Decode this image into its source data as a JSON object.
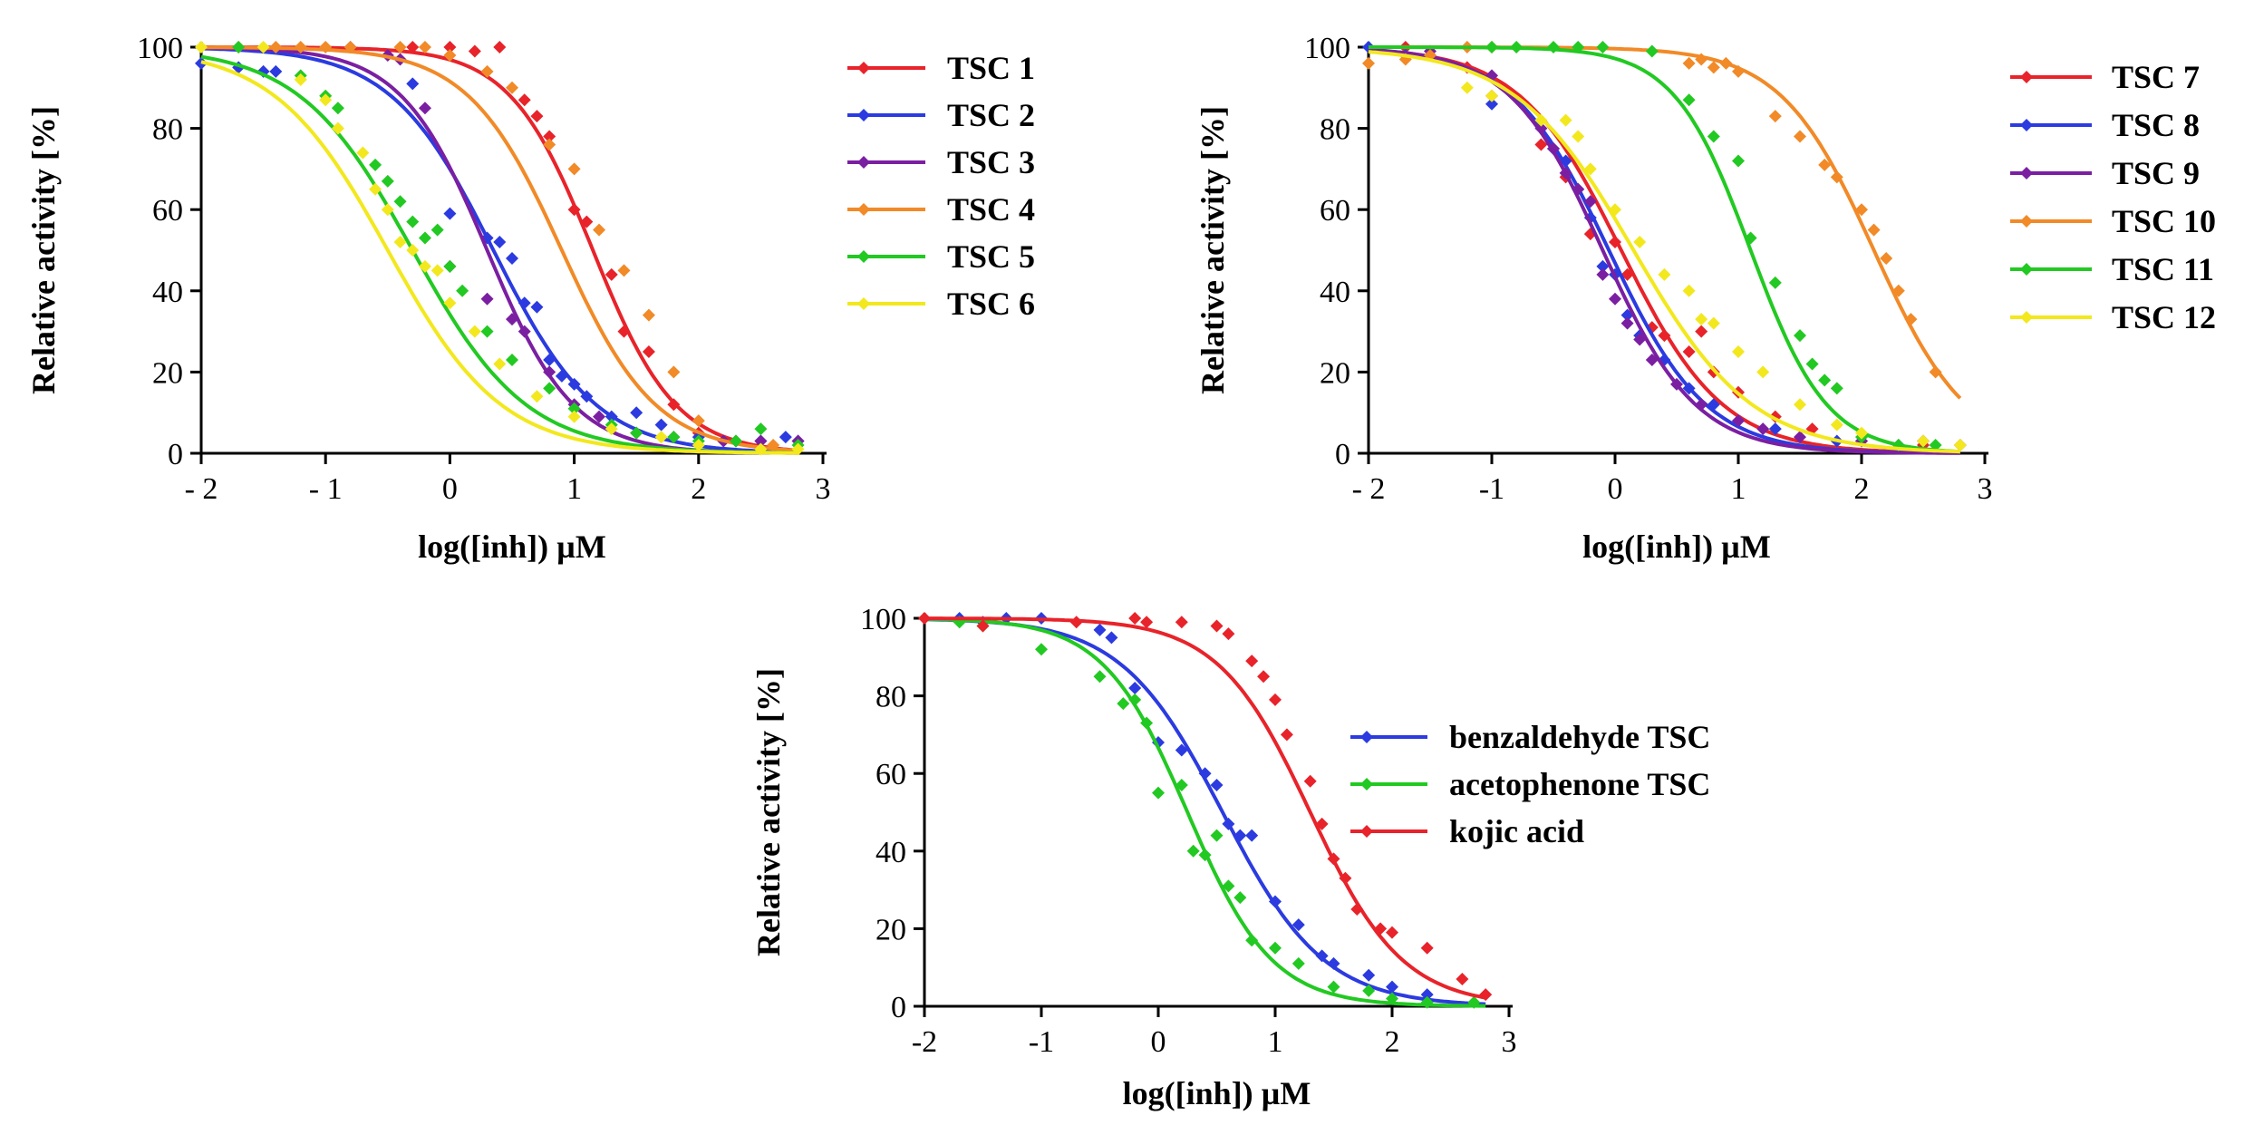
{
  "chart_data": [
    {
      "type": "scatter",
      "title": "",
      "xlabel": "log([inh]) µM",
      "ylabel": "Relative activity [%]",
      "xlim": [
        -2,
        3
      ],
      "ylim": [
        0,
        100
      ],
      "xticks": [
        -2,
        -1,
        0,
        1,
        2,
        3
      ],
      "xtick_labels": [
        "- 2",
        "- 1",
        "0",
        "1",
        "2",
        "3"
      ],
      "yticks": [
        0,
        20,
        40,
        60,
        80,
        100
      ],
      "ytick_labels": [
        "0",
        "20",
        "40",
        "60",
        "80",
        "100"
      ],
      "grid": false,
      "legend_position": "right",
      "fit_curves": true,
      "series": [
        {
          "name": "TSC 1",
          "color": "#e8232a",
          "logIC50": 1.15,
          "hill": 1.3,
          "x": [
            -0.3,
            0.0,
            0.2,
            0.4,
            0.6,
            0.7,
            0.8,
            1.0,
            1.1,
            1.3,
            1.4,
            1.6,
            1.8,
            2.0
          ],
          "y": [
            100,
            100,
            99,
            100,
            87,
            83,
            78,
            60,
            57,
            44,
            30,
            25,
            12,
            5
          ]
        },
        {
          "name": "TSC 2",
          "color": "#2b3be0",
          "logIC50": 0.35,
          "hill": 1.05,
          "x": [
            -2.0,
            -1.7,
            -1.5,
            -1.4,
            -0.3,
            0.0,
            0.3,
            0.4,
            0.5,
            0.6,
            0.7,
            0.8,
            0.9,
            1.0,
            1.1,
            1.3,
            1.5,
            1.7,
            2.0,
            2.3,
            2.5,
            2.7,
            2.8
          ],
          "y": [
            96,
            95,
            94,
            94,
            91,
            59,
            53,
            52,
            48,
            37,
            36,
            23,
            19,
            17,
            14,
            9,
            10,
            7,
            4,
            3,
            3,
            4,
            3
          ]
        },
        {
          "name": "TSC 3",
          "color": "#7b1fa2",
          "logIC50": 0.3,
          "hill": 1.25,
          "x": [
            -0.8,
            -0.5,
            -0.4,
            -0.2,
            0.0,
            0.3,
            0.5,
            0.6,
            0.8,
            1.0,
            1.2,
            1.5,
            1.8,
            2.2,
            2.5,
            2.8
          ],
          "y": [
            100,
            98,
            97,
            85,
            46,
            38,
            33,
            30,
            20,
            12,
            9,
            5,
            4,
            3,
            3,
            3
          ]
        },
        {
          "name": "TSC 4",
          "color": "#f18a27",
          "logIC50": 0.9,
          "hill": 1.15,
          "x": [
            -1.7,
            -1.4,
            -1.2,
            -1.0,
            -0.8,
            -0.4,
            -0.2,
            0.0,
            0.3,
            0.5,
            0.8,
            1.0,
            1.2,
            1.4,
            1.6,
            1.8,
            2.0,
            2.3,
            2.6
          ],
          "y": [
            100,
            100,
            100,
            100,
            100,
            100,
            100,
            98,
            94,
            90,
            76,
            70,
            55,
            45,
            34,
            20,
            8,
            3,
            2
          ]
        },
        {
          "name": "TSC 5",
          "color": "#22c922",
          "logIC50": -0.3,
          "hill": 0.95,
          "x": [
            -1.7,
            -1.2,
            -1.0,
            -0.9,
            -0.6,
            -0.5,
            -0.4,
            -0.3,
            -0.2,
            -0.1,
            0.0,
            0.1,
            0.3,
            0.5,
            0.8,
            1.0,
            1.3,
            1.5,
            1.8,
            2.0,
            2.3,
            2.5,
            2.8
          ],
          "y": [
            100,
            93,
            88,
            85,
            71,
            67,
            62,
            57,
            53,
            55,
            46,
            40,
            30,
            23,
            16,
            11,
            7,
            5,
            4,
            3,
            3,
            6,
            2
          ]
        },
        {
          "name": "TSC 6",
          "color": "#f2e81d",
          "logIC50": -0.5,
          "hill": 0.95,
          "x": [
            -2.0,
            -1.5,
            -1.2,
            -1.0,
            -0.9,
            -0.7,
            -0.6,
            -0.5,
            -0.4,
            -0.3,
            -0.2,
            -0.1,
            0.0,
            0.2,
            0.4,
            0.7,
            1.0,
            1.3,
            1.7,
            2.0,
            2.5,
            2.8
          ],
          "y": [
            100,
            100,
            92,
            87,
            80,
            74,
            65,
            60,
            52,
            50,
            46,
            45,
            37,
            30,
            22,
            14,
            9,
            6,
            4,
            2,
            1,
            1
          ]
        }
      ]
    },
    {
      "type": "scatter",
      "title": "",
      "xlabel": "log([inh]) µM",
      "ylabel": "Relative activity [%]",
      "xlim": [
        -2,
        3
      ],
      "ylim": [
        0,
        100
      ],
      "xticks": [
        -2,
        -1,
        0,
        1,
        2,
        3
      ],
      "xtick_labels": [
        "- 2",
        "-1",
        "0",
        "1",
        "2",
        "3"
      ],
      "yticks": [
        0,
        20,
        40,
        60,
        80,
        100
      ],
      "ytick_labels": [
        "0",
        "20",
        "40",
        "60",
        "80",
        "100"
      ],
      "grid": false,
      "legend_position": "right",
      "fit_curves": true,
      "series": [
        {
          "name": "TSC 7",
          "color": "#e8232a",
          "logIC50": 0.05,
          "hill": 1.05,
          "x": [
            -1.7,
            -1.2,
            -1.0,
            -0.6,
            -0.4,
            -0.2,
            0.0,
            0.1,
            0.3,
            0.4,
            0.6,
            0.7,
            0.8,
            1.0,
            1.3,
            1.6,
            2.0,
            2.5
          ],
          "y": [
            100,
            95,
            88,
            76,
            68,
            54,
            52,
            44,
            31,
            29,
            25,
            30,
            20,
            15,
            9,
            6,
            3,
            2
          ]
        },
        {
          "name": "TSC 8",
          "color": "#2b3be0",
          "logIC50": -0.05,
          "hill": 1.1,
          "x": [
            -2.0,
            -1.7,
            -1.0,
            -0.5,
            -0.4,
            -0.3,
            -0.2,
            -0.1,
            0.0,
            0.1,
            0.2,
            0.4,
            0.6,
            0.8,
            1.0,
            1.3,
            1.8,
            2.3
          ],
          "y": [
            100,
            98,
            86,
            75,
            72,
            65,
            58,
            46,
            44,
            34,
            29,
            23,
            16,
            12,
            8,
            6,
            3,
            2
          ]
        },
        {
          "name": "TSC 9",
          "color": "#7b1fa2",
          "logIC50": -0.1,
          "hill": 1.15,
          "x": [
            -1.5,
            -1.0,
            -0.6,
            -0.5,
            -0.4,
            -0.3,
            -0.2,
            -0.1,
            0.0,
            0.1,
            0.2,
            0.3,
            0.5,
            0.7,
            1.0,
            1.2,
            1.5,
            2.0,
            2.5,
            2.8
          ],
          "y": [
            99,
            93,
            80,
            75,
            69,
            65,
            62,
            44,
            38,
            32,
            28,
            23,
            17,
            12,
            8,
            6,
            4,
            3,
            3,
            2
          ]
        },
        {
          "name": "TSC 10",
          "color": "#f18a27",
          "logIC50": 2.1,
          "hill": 1.15,
          "x": [
            -2.0,
            -1.7,
            -1.5,
            -1.2,
            -1.0,
            0.6,
            0.7,
            0.8,
            0.9,
            1.0,
            1.3,
            1.5,
            1.7,
            1.8,
            2.0,
            2.1,
            2.2,
            2.3,
            2.4,
            2.6,
            2.8
          ],
          "y": [
            96,
            97,
            98,
            100,
            100,
            96,
            97,
            95,
            96,
            94,
            83,
            78,
            71,
            68,
            60,
            55,
            48,
            40,
            33,
            20,
            2
          ]
        },
        {
          "name": "TSC 11",
          "color": "#22c922",
          "logIC50": 1.1,
          "hill": 1.4,
          "x": [
            -1.0,
            -0.8,
            -0.5,
            -0.3,
            -0.1,
            0.3,
            0.6,
            0.8,
            1.0,
            1.1,
            1.3,
            1.5,
            1.6,
            1.7,
            1.8,
            2.0,
            2.3,
            2.6
          ],
          "y": [
            100,
            100,
            100,
            100,
            100,
            99,
            87,
            78,
            72,
            53,
            42,
            29,
            22,
            18,
            16,
            4,
            2,
            2
          ]
        },
        {
          "name": "TSC 12",
          "color": "#f2e81d",
          "logIC50": 0.15,
          "hill": 0.9,
          "x": [
            -1.2,
            -1.0,
            -0.6,
            -0.4,
            -0.3,
            -0.2,
            0.0,
            0.2,
            0.4,
            0.6,
            0.7,
            0.8,
            1.0,
            1.2,
            1.5,
            1.8,
            2.0,
            2.5,
            2.8
          ],
          "y": [
            90,
            88,
            82,
            82,
            78,
            70,
            60,
            52,
            44,
            40,
            33,
            32,
            25,
            20,
            12,
            7,
            5,
            3,
            2
          ]
        }
      ]
    },
    {
      "type": "scatter",
      "title": "",
      "xlabel": "log([inh]) µM",
      "ylabel": "Relative activity [%]",
      "xlim": [
        -2,
        3
      ],
      "ylim": [
        0,
        100
      ],
      "xticks": [
        -2,
        -1,
        0,
        1,
        2,
        3
      ],
      "xtick_labels": [
        "-2",
        "-1",
        "0",
        "1",
        "2",
        "3"
      ],
      "yticks": [
        0,
        20,
        40,
        60,
        80,
        100
      ],
      "ytick_labels": [
        "0",
        "20",
        "40",
        "60",
        "80",
        "100"
      ],
      "grid": false,
      "legend_position": "right",
      "fit_curves": true,
      "series": [
        {
          "name": "benzaldehyde TSC",
          "color": "#2b3be0",
          "logIC50": 0.55,
          "hill": 1.0,
          "x": [
            -1.7,
            -1.5,
            -1.3,
            -1.0,
            -0.5,
            -0.4,
            -0.2,
            0.0,
            0.2,
            0.4,
            0.5,
            0.6,
            0.7,
            0.8,
            1.0,
            1.2,
            1.4,
            1.5,
            1.8,
            2.0,
            2.3
          ],
          "y": [
            100,
            99,
            100,
            100,
            97,
            95,
            82,
            68,
            66,
            60,
            57,
            47,
            44,
            44,
            27,
            21,
            13,
            11,
            8,
            5,
            3
          ]
        },
        {
          "name": "acetophenone TSC",
          "color": "#22c922",
          "logIC50": 0.25,
          "hill": 1.2,
          "x": [
            -1.7,
            -1.5,
            -1.0,
            -0.5,
            -0.3,
            -0.2,
            -0.1,
            0.0,
            0.2,
            0.3,
            0.4,
            0.5,
            0.6,
            0.7,
            0.8,
            1.0,
            1.2,
            1.5,
            1.8,
            2.0,
            2.3,
            2.7
          ],
          "y": [
            99,
            98,
            92,
            85,
            78,
            79,
            73,
            55,
            57,
            40,
            39,
            44,
            31,
            28,
            17,
            15,
            11,
            5,
            4,
            2,
            1,
            1
          ]
        },
        {
          "name": "kojic acid",
          "color": "#e8232a",
          "logIC50": 1.3,
          "hill": 1.1,
          "x": [
            -2.0,
            -1.5,
            -0.7,
            -0.2,
            -0.1,
            0.2,
            0.5,
            0.6,
            0.8,
            0.9,
            1.0,
            1.1,
            1.3,
            1.4,
            1.5,
            1.6,
            1.7,
            1.9,
            2.0,
            2.3,
            2.6,
            2.8
          ],
          "y": [
            100,
            98,
            99,
            100,
            99,
            99,
            98,
            96,
            89,
            85,
            79,
            70,
            58,
            47,
            38,
            33,
            25,
            20,
            19,
            15,
            7,
            3
          ]
        }
      ]
    }
  ]
}
